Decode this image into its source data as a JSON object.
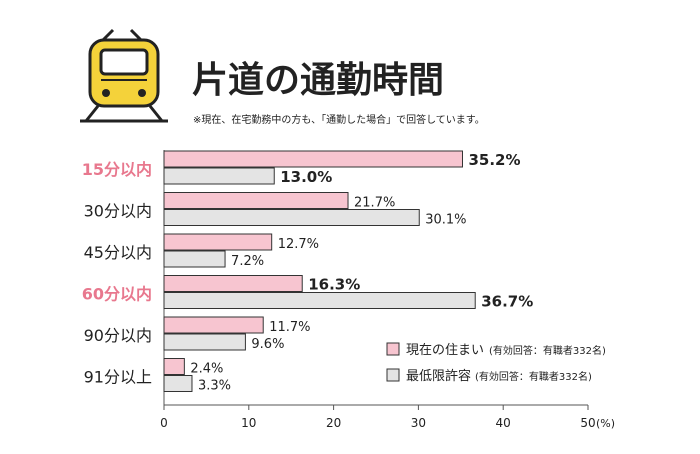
{
  "chart_data": {
    "type": "bar",
    "orientation": "horizontal",
    "title": "片道の通勤時間",
    "subtitle": "※現在、在宅勤務中の方も、「通勤した場合」で回答しています。",
    "categories": [
      "15分以内",
      "30分以内",
      "45分以内",
      "60分以内",
      "90分以内",
      "91分以上"
    ],
    "highlighted_categories": [
      "15分以内",
      "60分以内"
    ],
    "series": [
      {
        "name": "現在の住まい",
        "note": "(有効回答：有職者332名)",
        "color": "#f7c5d0",
        "values": [
          35.2,
          21.7,
          12.7,
          16.3,
          11.7,
          2.4
        ],
        "value_labels": [
          "35.2%",
          "21.7%",
          "12.7%",
          "16.3%",
          "11.7%",
          "2.4%"
        ]
      },
      {
        "name": "最低限許容",
        "note": "(有効回答：有職者332名)",
        "color": "#e4e4e4",
        "values": [
          13.0,
          30.1,
          7.2,
          36.7,
          9.6,
          3.3
        ],
        "value_labels": [
          "13.0%",
          "30.1%",
          "7.2%",
          "36.7%",
          "9.6%",
          "3.3%"
        ]
      }
    ],
    "bold_labels": [
      [
        true,
        false,
        false,
        true,
        false,
        false
      ],
      [
        true,
        false,
        false,
        true,
        false,
        false
      ]
    ],
    "xlim": [
      0,
      50
    ],
    "xticks": [
      0,
      10,
      20,
      30,
      40,
      50
    ],
    "xtick_labels": [
      "0",
      "10",
      "20",
      "30",
      "40",
      "50"
    ],
    "xunit": "(%)",
    "legend_position": "bottom-right",
    "colors": {
      "highlight_text": "#e8788e",
      "text": "#222222",
      "axis": "#555555"
    },
    "icon": "train-icon"
  }
}
